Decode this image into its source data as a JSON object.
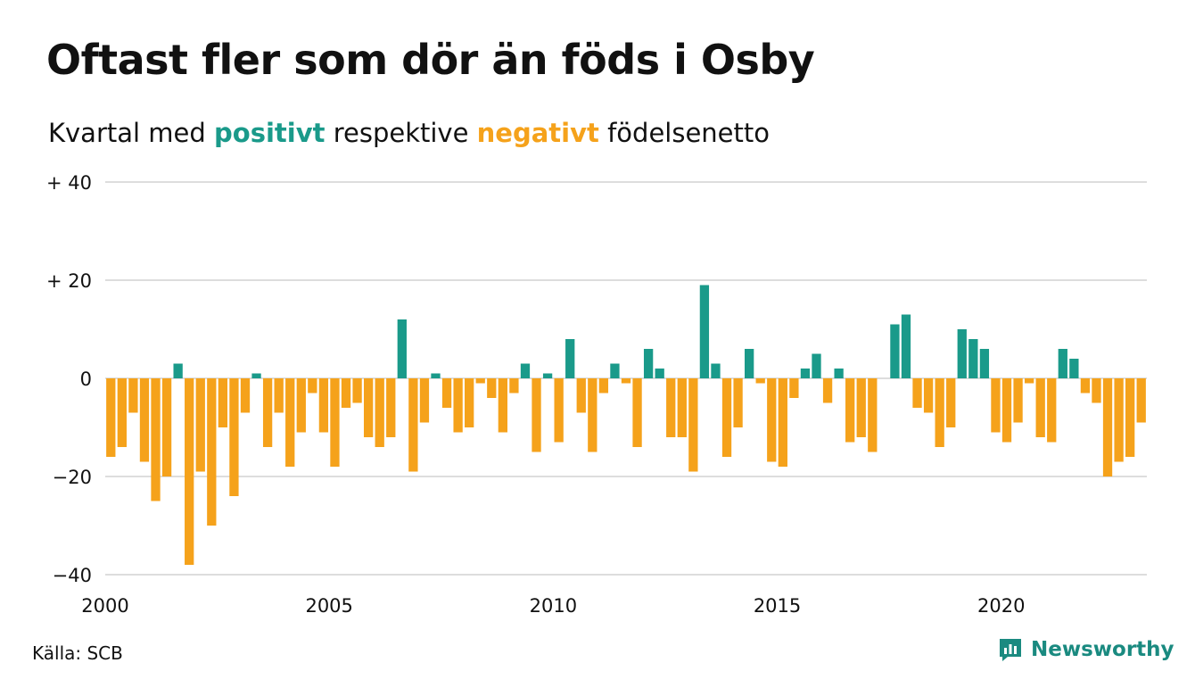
{
  "header": {
    "title": "Oftast fler som dör än föds i Osby",
    "subtitle_pre": "Kvartal med",
    "subtitle_pos": "positivt",
    "subtitle_mid": "respektive",
    "subtitle_neg": "negativt",
    "subtitle_post": "födelsenetto"
  },
  "footer": {
    "source": "Källa: SCB",
    "brand": "Newsworthy",
    "brand_icon": "newsworthy-logo-icon"
  },
  "colors": {
    "positive": "#1a9a8a",
    "negative": "#f5a21b",
    "grid": "#dddddd",
    "brand": "#1a8a80"
  },
  "chart_data": {
    "type": "bar",
    "x_start": "2000 Q1",
    "ylim": [
      -40,
      40
    ],
    "yticks": [
      40,
      20,
      0,
      -20,
      -40
    ],
    "ytick_labels": [
      "+ 40",
      "+ 20",
      "0",
      "−20",
      "−40"
    ],
    "xticks": [
      "2000",
      "2005",
      "2010",
      "2015",
      "2020"
    ],
    "grid": true,
    "values": [
      -16,
      -14,
      -7,
      -17,
      -25,
      -20,
      3,
      -38,
      -19,
      -30,
      -10,
      -24,
      -7,
      1,
      -14,
      -7,
      -18,
      -11,
      -3,
      -11,
      -18,
      -6,
      -5,
      -12,
      -14,
      -12,
      12,
      -19,
      -9,
      1,
      -6,
      -11,
      -10,
      -1,
      -4,
      -11,
      -3,
      3,
      -15,
      1,
      -13,
      8,
      -7,
      -15,
      -3,
      3,
      -1,
      -14,
      6,
      2,
      -12,
      -12,
      -19,
      19,
      3,
      -16,
      -10,
      6,
      -1,
      -17,
      -18,
      -4,
      2,
      5,
      -5,
      2,
      -13,
      -12,
      -15,
      0,
      11,
      13,
      -6,
      -7,
      -14,
      -10,
      10,
      8,
      6,
      -11,
      -13,
      -9,
      -1,
      -12,
      -13,
      6,
      4,
      -3,
      -5,
      -20,
      -17,
      -16,
      -9
    ]
  }
}
